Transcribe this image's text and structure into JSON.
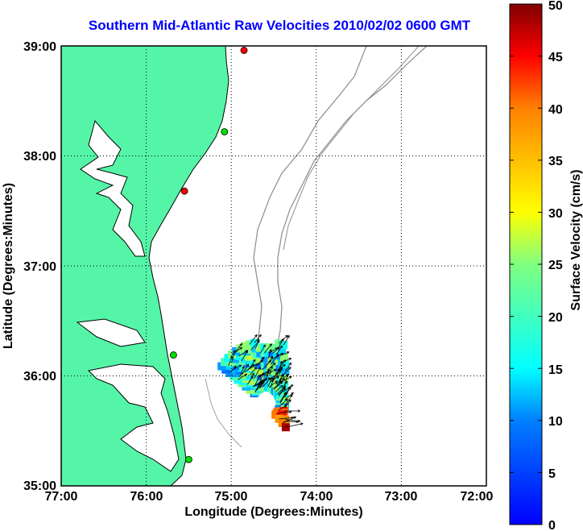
{
  "title": "Southern Mid-Atlantic Raw Velocities 2010/02/02 0600 GMT",
  "map": {
    "xlabel": "Longitude (Degrees:Minutes)",
    "ylabel": "Latitude (Degrees:Minutes)",
    "lon_ticks": [
      "77:00",
      "76:00",
      "75:00",
      "74:00",
      "73:00",
      "72:00"
    ],
    "lat_ticks": [
      "39:00",
      "38:00",
      "37:00",
      "36:00",
      "35:00"
    ],
    "lon_range": [
      -77,
      -72
    ],
    "lat_range": [
      35,
      39
    ],
    "land_color": "#55f5a8",
    "grid": "dotted",
    "stations": [
      {
        "lon": -74.85,
        "lat": 38.96,
        "status": "red"
      },
      {
        "lon": -75.08,
        "lat": 38.22,
        "status": "green"
      },
      {
        "lon": -75.55,
        "lat": 37.68,
        "status": "red"
      },
      {
        "lon": -75.68,
        "lat": 36.19,
        "status": "green"
      },
      {
        "lon": -75.5,
        "lat": 35.24,
        "status": "green"
      }
    ]
  },
  "colorbar": {
    "label": "Surface Velocity (cm/s)",
    "min": 0,
    "max": 50,
    "ticks": [
      "0",
      "5",
      "10",
      "15",
      "20",
      "25",
      "30",
      "35",
      "40",
      "45",
      "50"
    ]
  }
}
